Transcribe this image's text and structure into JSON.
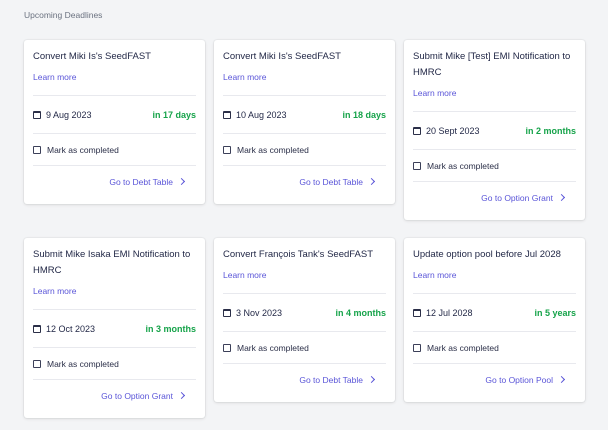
{
  "section_title": "Upcoming Deadlines",
  "cards": [
    {
      "title": "Convert Miki Is's SeedFAST",
      "learn": "Learn more",
      "date": "9 Aug 2023",
      "due": "in 17 days",
      "check": "Mark as completed",
      "goto": "Go to Debt Table"
    },
    {
      "title": "Convert Miki Is's SeedFAST",
      "learn": "Learn more",
      "date": "10 Aug 2023",
      "due": "in 18 days",
      "check": "Mark as completed",
      "goto": "Go to Debt Table"
    },
    {
      "title": "Submit Mike [Test] EMI Notification to HMRC",
      "learn": "Learn more",
      "date": "20 Sept 2023",
      "due": "in 2 months",
      "check": "Mark as completed",
      "goto": "Go to Option Grant"
    },
    {
      "title": "Submit Mike Isaka EMI Notification to HMRC",
      "learn": "Learn more",
      "date": "12 Oct 2023",
      "due": "in 3 months",
      "check": "Mark as completed",
      "goto": "Go to Option Grant"
    },
    {
      "title": "Convert François Tank's SeedFAST",
      "learn": "Learn more",
      "date": "3 Nov 2023",
      "due": "in 4 months",
      "check": "Mark as completed",
      "goto": "Go to Debt Table"
    },
    {
      "title": "Update option pool before Jul 2028",
      "learn": "Learn more",
      "date": "12 Jul 2028",
      "due": "in 5 years",
      "check": "Mark as completed",
      "goto": "Go to Option Pool"
    }
  ],
  "colors": {
    "accent": "#5a55d8",
    "due": "#16a34a",
    "background": "#f3f4f6"
  }
}
